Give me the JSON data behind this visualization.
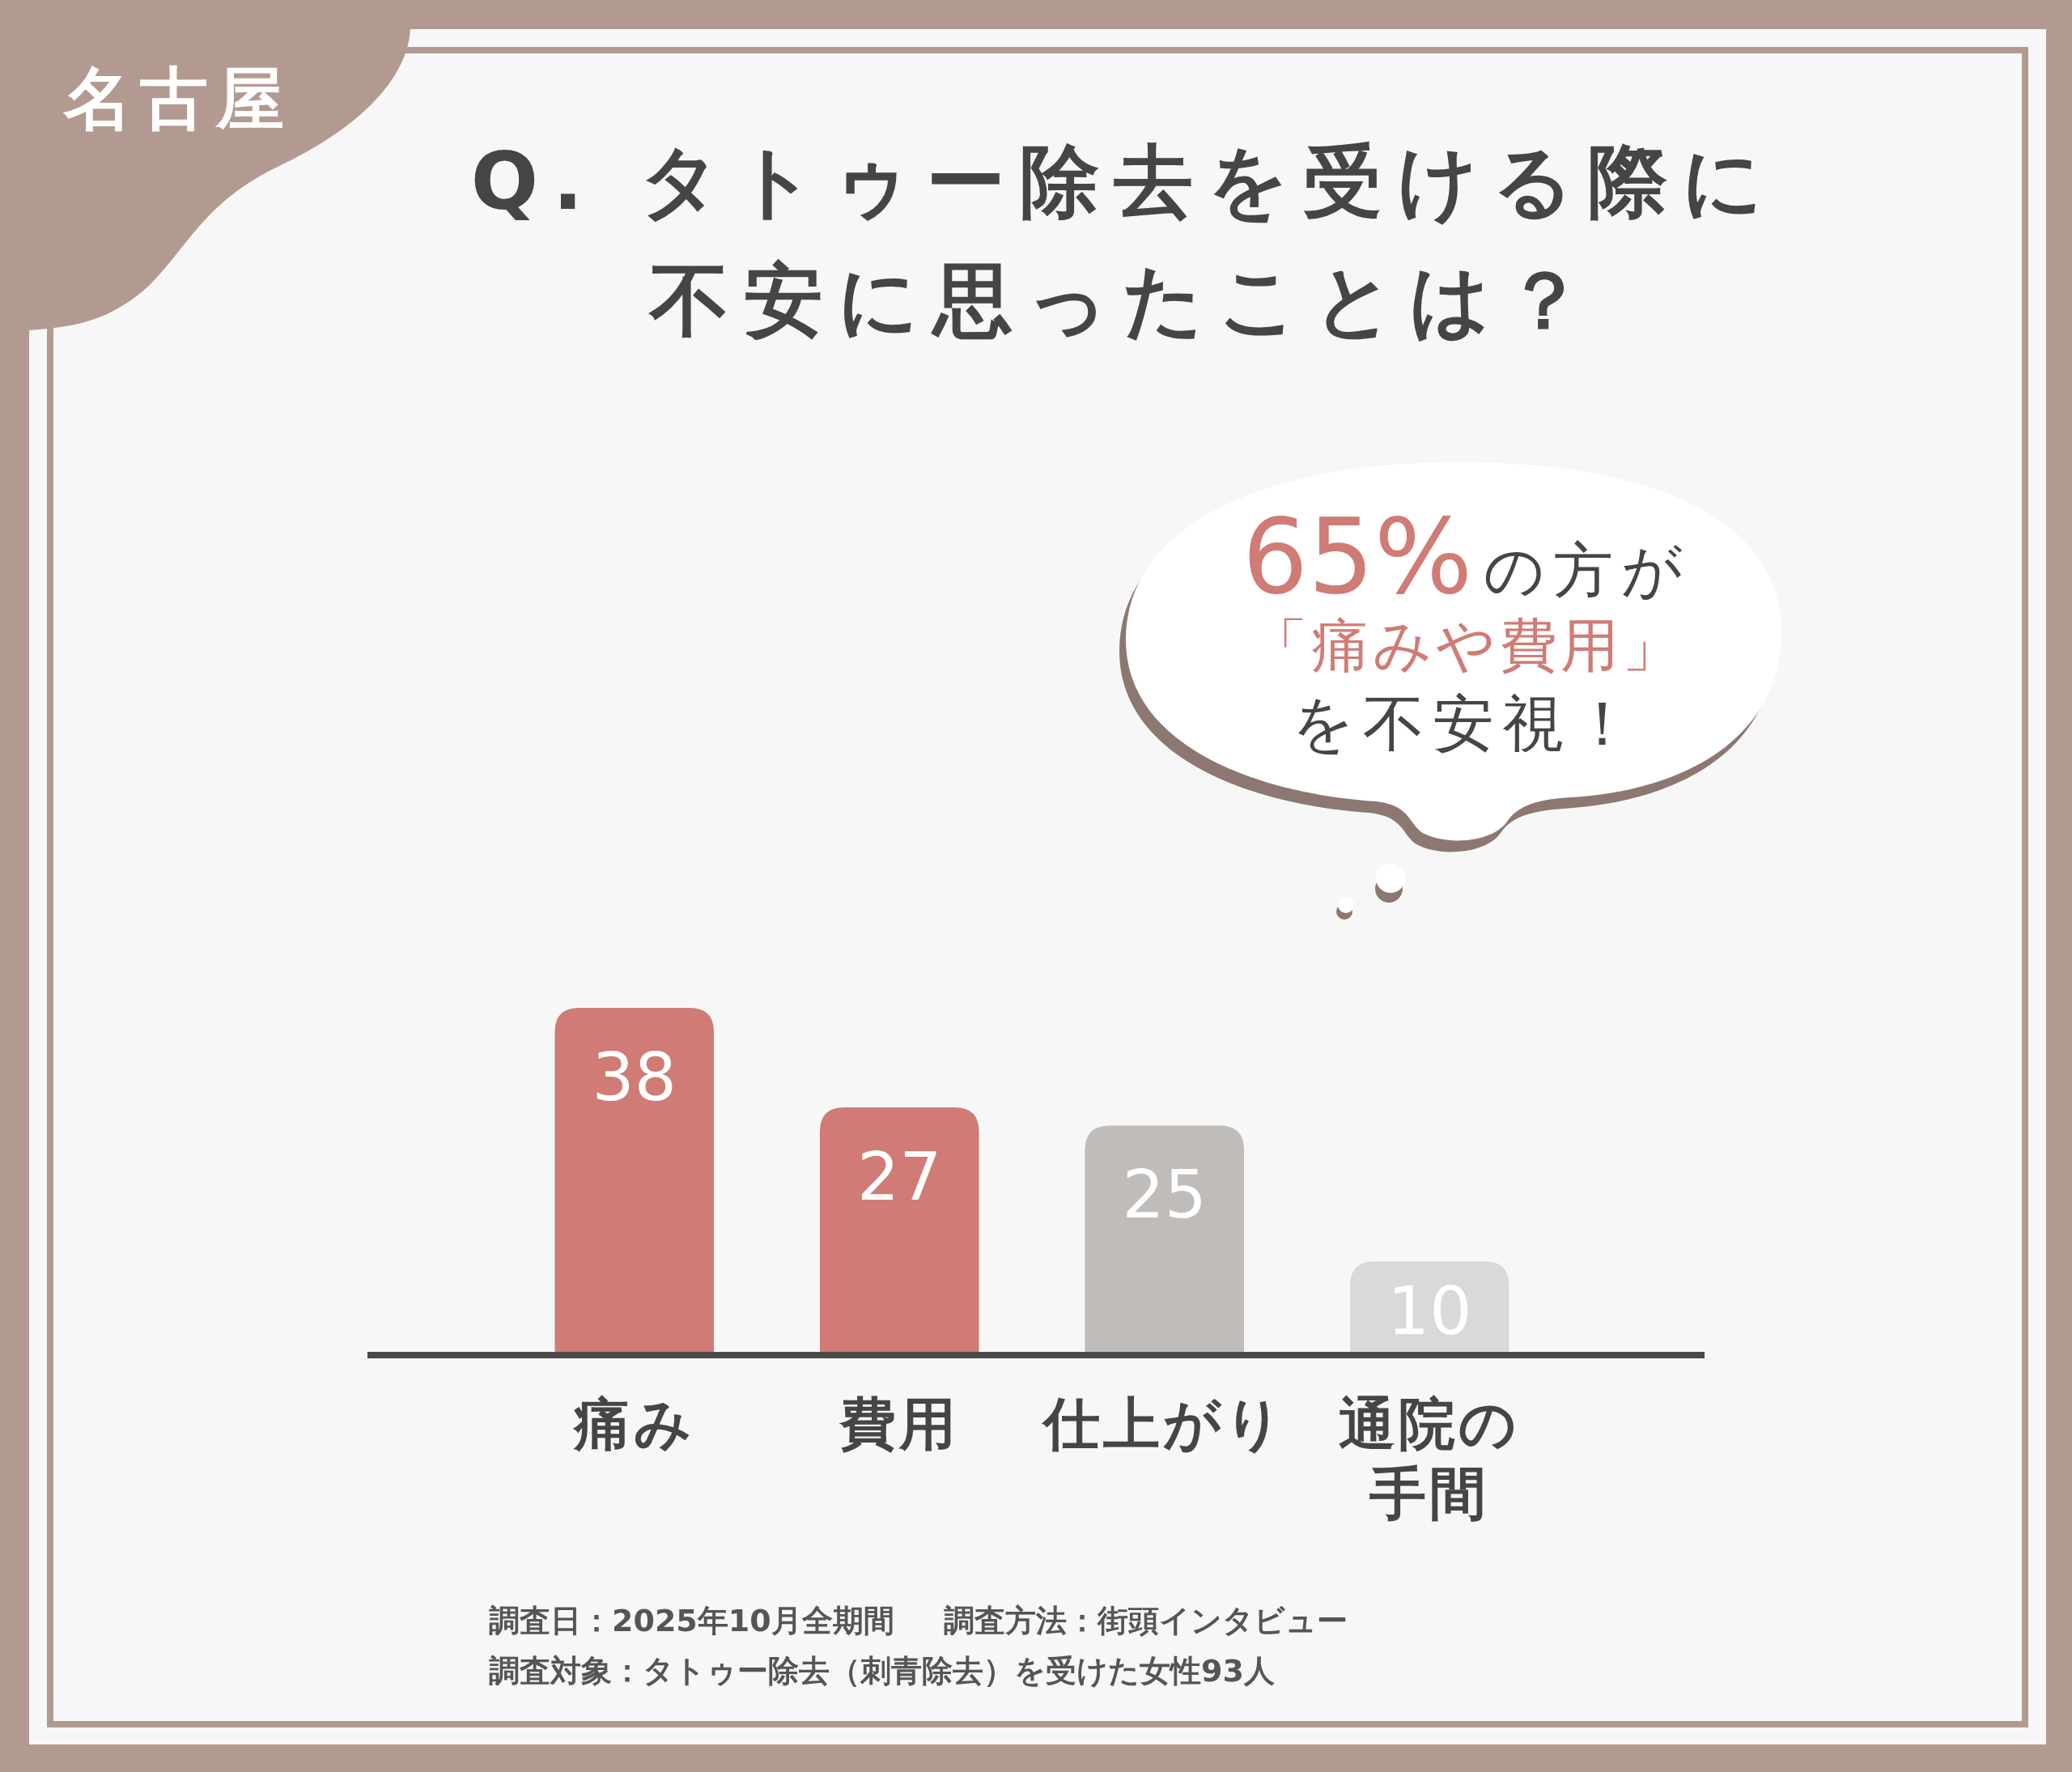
{
  "chart_data": {
    "type": "bar",
    "title": "Q. タトゥー除去を受ける際に不安に思ったことは？",
    "categories": [
      "痛み",
      "費用",
      "仕上がり",
      "通院の手間"
    ],
    "values": [
      38,
      27,
      25,
      10
    ],
    "colors": [
      "#d07b75",
      "#d07b75",
      "#bfbcba",
      "#d9d9d9"
    ],
    "data_labels": true,
    "annotations": [
      "名古屋",
      "65%",
      "の方が",
      "「痛みや費用」",
      "を不安視！",
      "調査日：2025年10月全期間",
      "調査方法：街頭インタビュー",
      "調査対象：タトゥー除去（刺青除去）を受けた女性93人"
    ]
  }
}
